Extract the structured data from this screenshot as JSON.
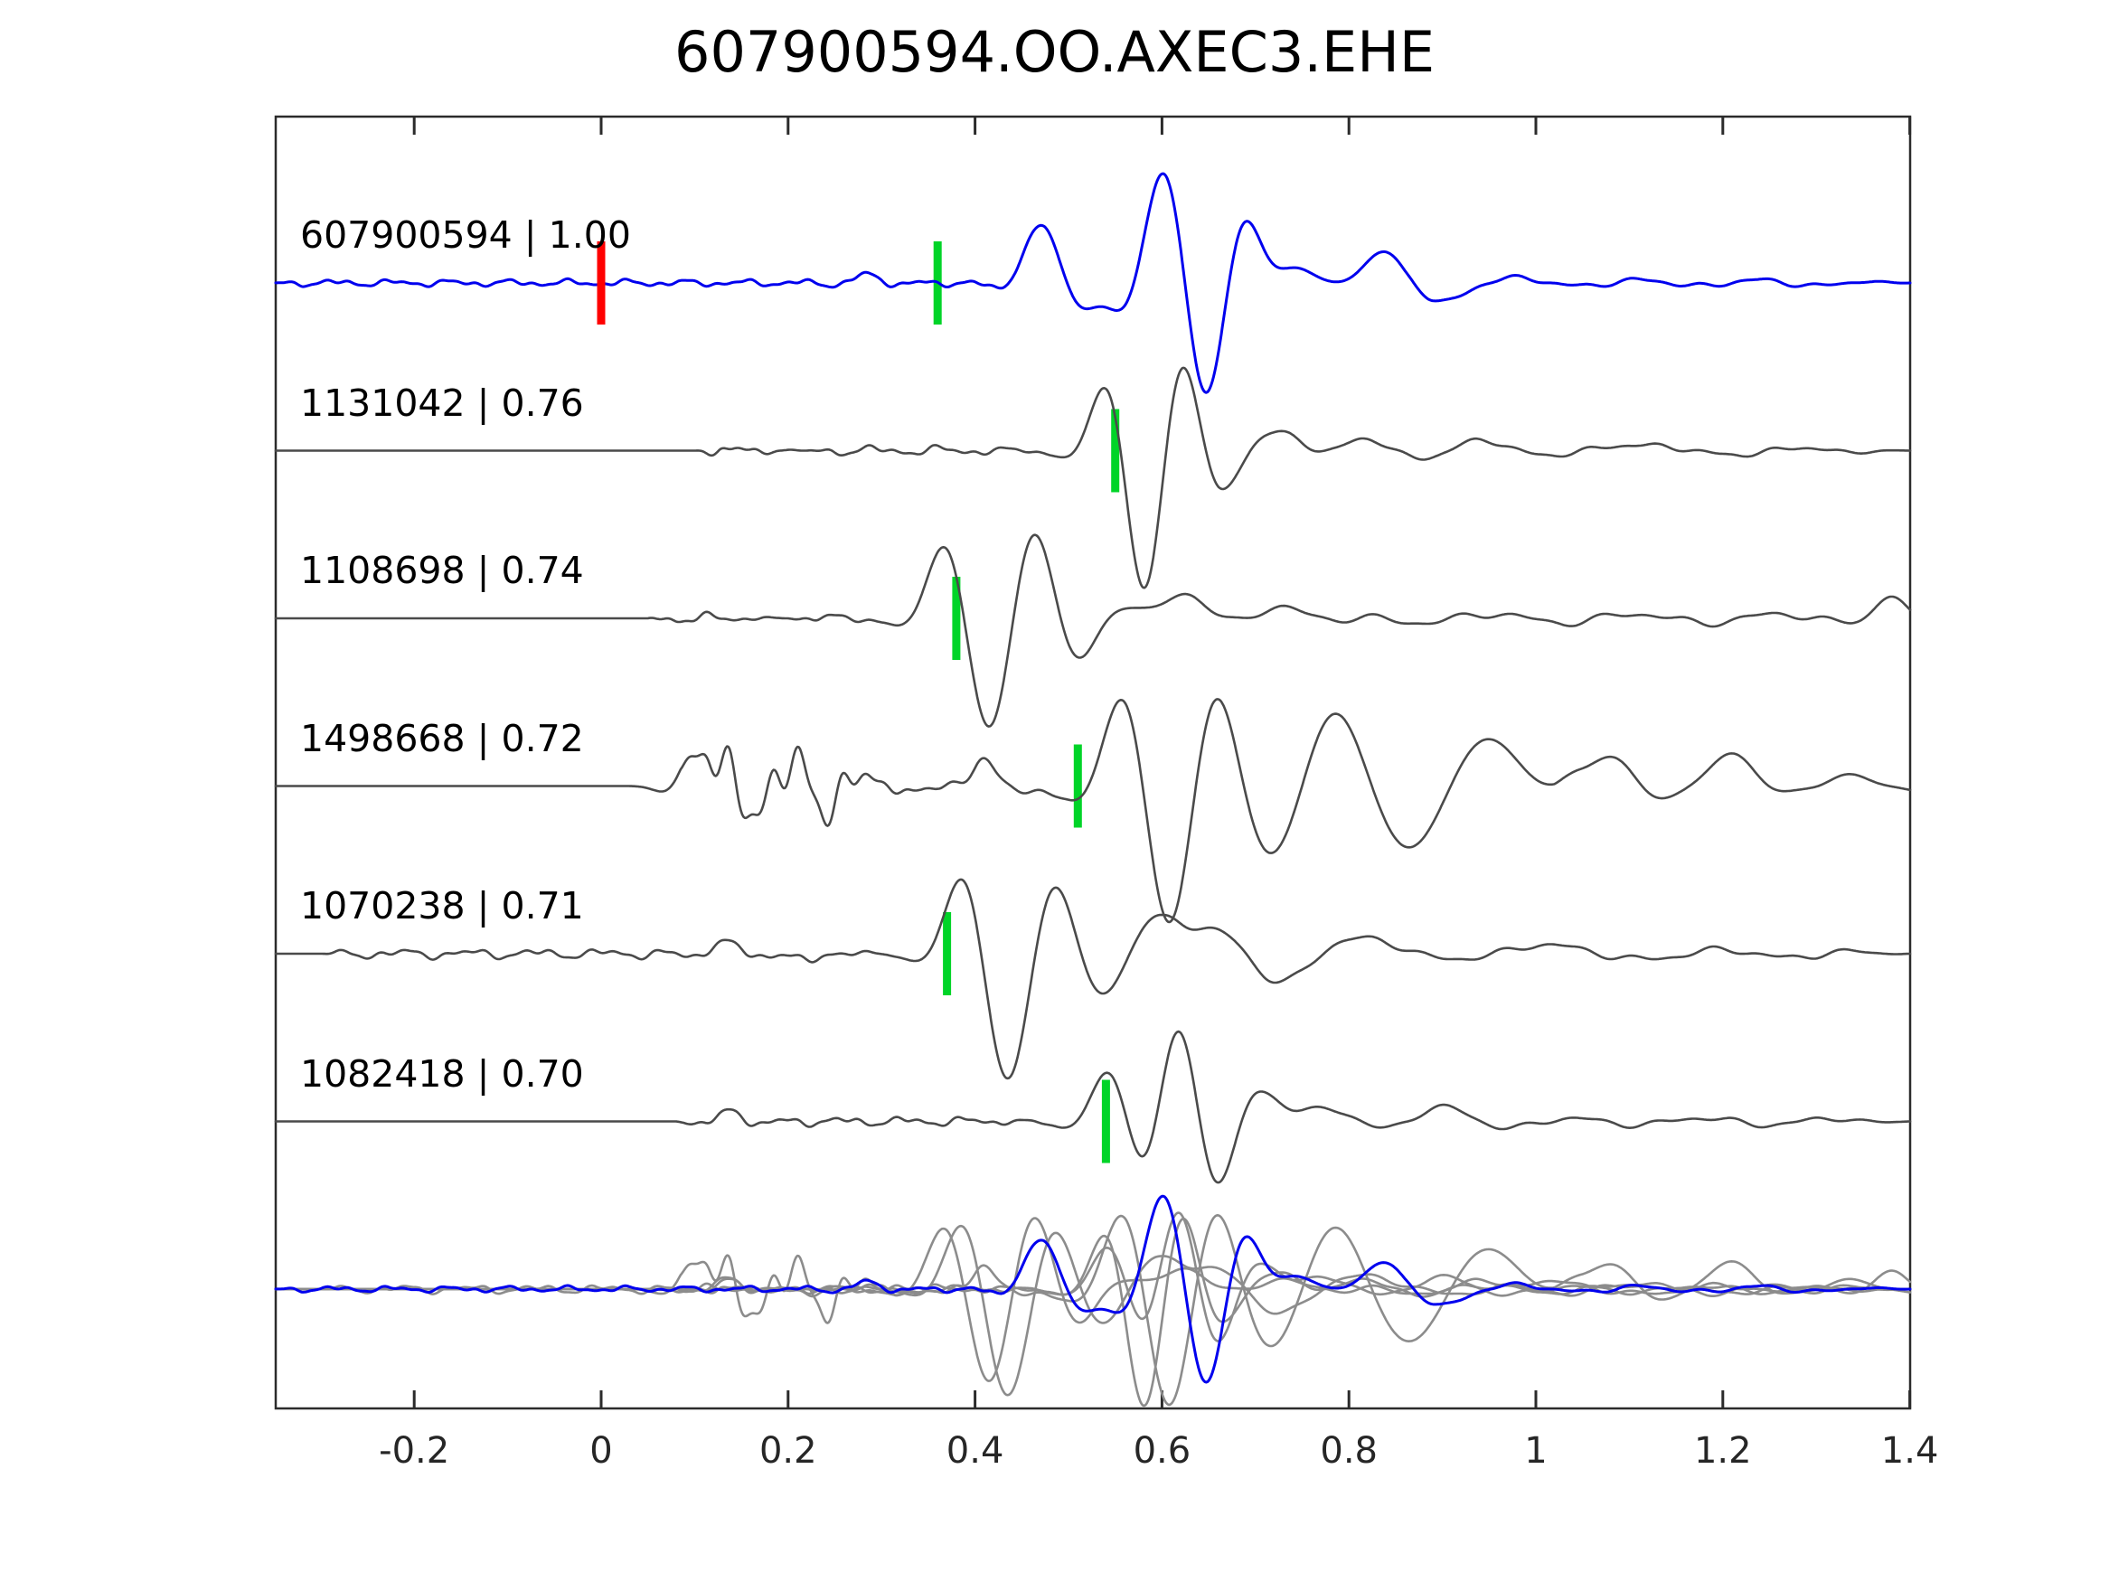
{
  "chart_data": {
    "type": "line",
    "title": "607900594.OO.AXEC3.EHE",
    "xlabel": "",
    "ylabel": "",
    "xlim": [
      -0.35,
      1.4
    ],
    "x_ticks": [
      -0.2,
      0,
      0.2,
      0.4,
      0.6,
      0.8,
      1,
      1.2,
      1.4
    ],
    "x_tick_labels": [
      "-0.2",
      "0",
      "0.2",
      "0.4",
      "0.6",
      "0.8",
      "1",
      "1.2",
      "1.4"
    ],
    "grid": false,
    "legend": "none",
    "colors": {
      "reference_trace": "#0000ee",
      "candidate_trace": "#4a4a4a",
      "overlay_candidate_trace": "#8c8c8c",
      "pick_marker": "#00d428",
      "zero_lag_marker": "#ff0000",
      "frame": "#2b2b2b",
      "tick_label": "#262626",
      "background": "#ffffff"
    },
    "events_format": "[time, amplitude_px, frequency, gaussian_width] gabor wavelets approximating the waveform",
    "bursts_format": "[t_from, t_to, amplitude_px, frequency, seed] band-limited noise packets",
    "rows": [
      {
        "id": "607900594",
        "correlation": 1.0,
        "label": "607900594 | 1.00",
        "role": "reference",
        "zero_lag_t": 0.0,
        "pick_t": 0.36,
        "bursts": [
          [
            -0.35,
            0.5,
            4.5,
            16,
            3
          ],
          [
            0.86,
            1.4,
            6,
            8,
            5
          ]
        ],
        "events": [
          [
            0.285,
            9,
            10,
            0.03
          ],
          [
            0.47,
            60,
            7,
            0.035
          ],
          [
            0.515,
            -22,
            9,
            0.035
          ],
          [
            0.6,
            100,
            8.5,
            0.05
          ],
          [
            0.648,
            -70,
            9,
            0.045
          ],
          [
            0.688,
            58,
            9,
            0.045
          ],
          [
            0.733,
            40,
            8,
            0.05
          ],
          [
            0.778,
            20,
            8,
            0.05
          ],
          [
            0.835,
            36,
            6.5,
            0.05
          ],
          [
            0.9,
            -14,
            6,
            0.06
          ]
        ]
      },
      {
        "id": "1131042",
        "correlation": 0.76,
        "label": "1131042 | 0.76",
        "role": "candidate",
        "pick_t": 0.55,
        "bursts": [
          [
            0.1,
            0.22,
            9,
            16,
            7
          ],
          [
            0.22,
            0.5,
            6.5,
            14,
            8
          ],
          [
            0.66,
            1.4,
            6,
            8,
            11
          ]
        ],
        "events": [
          [
            0.545,
            60,
            7.5,
            0.04
          ],
          [
            0.582,
            -138,
            7,
            0.042
          ],
          [
            0.618,
            80,
            8,
            0.045
          ],
          [
            0.662,
            -22,
            8,
            0.05
          ],
          [
            0.73,
            22,
            6,
            0.06
          ],
          [
            0.82,
            16,
            6,
            0.07
          ],
          [
            0.95,
            12,
            5.5,
            0.08
          ],
          [
            1.1,
            9,
            5,
            0.09
          ]
        ]
      },
      {
        "id": "1108698",
        "correlation": 0.74,
        "label": "1108698 | 0.74",
        "role": "candidate",
        "pick_t": 0.38,
        "bursts": [
          [
            0.05,
            0.2,
            8,
            15,
            13
          ],
          [
            0.2,
            0.34,
            6.5,
            14,
            14
          ],
          [
            0.5,
            1.4,
            9,
            6.5,
            15
          ]
        ],
        "events": [
          [
            0.37,
            66,
            7,
            0.042
          ],
          [
            0.415,
            -100,
            6.5,
            0.048
          ],
          [
            0.462,
            73,
            7,
            0.045
          ],
          [
            0.51,
            -28,
            7,
            0.05
          ],
          [
            0.555,
            20,
            8,
            0.045
          ],
          [
            0.62,
            30,
            5.5,
            0.065
          ],
          [
            0.72,
            20,
            5.5,
            0.07
          ],
          [
            1.38,
            24,
            7,
            0.03
          ]
        ]
      },
      {
        "id": "1498668",
        "correlation": 0.72,
        "label": "1498668 | 0.72",
        "role": "candidate",
        "pick_t": 0.51,
        "bursts": [
          [
            0.085,
            0.33,
            55,
            13,
            17
          ],
          [
            0.33,
            0.5,
            20,
            10,
            18
          ],
          [
            1.02,
            1.4,
            16,
            5,
            19
          ]
        ],
        "events": [
          [
            0.1,
            40,
            10,
            0.03
          ],
          [
            0.4,
            30,
            8,
            0.05
          ],
          [
            0.56,
            76,
            7,
            0.05
          ],
          [
            0.607,
            -122,
            6.5,
            0.05
          ],
          [
            0.658,
            66,
            7,
            0.05
          ],
          [
            0.72,
            -52,
            5.5,
            0.06
          ],
          [
            0.785,
            60,
            5,
            0.06
          ],
          [
            0.865,
            -48,
            4.8,
            0.07
          ],
          [
            0.955,
            50,
            4.5,
            0.08
          ],
          [
            1.07,
            40,
            4,
            0.09
          ],
          [
            1.2,
            26,
            4,
            0.09
          ],
          [
            1.33,
            20,
            5,
            0.07
          ]
        ]
      },
      {
        "id": "1070238",
        "correlation": 0.71,
        "label": "1070238 | 0.71",
        "role": "candidate",
        "pick_t": 0.37,
        "bursts": [
          [
            -0.3,
            0.33,
            6.5,
            14,
            23
          ],
          [
            0.6,
            1.4,
            8,
            7,
            29
          ]
        ],
        "events": [
          [
            0.13,
            13,
            10,
            0.035
          ],
          [
            0.22,
            -10,
            11,
            0.03
          ],
          [
            0.39,
            72,
            7,
            0.042
          ],
          [
            0.435,
            -118,
            6,
            0.05
          ],
          [
            0.482,
            56,
            7,
            0.05
          ],
          [
            0.535,
            -22,
            7,
            0.05
          ],
          [
            0.6,
            46,
            6,
            0.06
          ],
          [
            0.66,
            30,
            6,
            0.06
          ],
          [
            0.73,
            -20,
            6,
            0.06
          ],
          [
            0.83,
            18,
            5,
            0.08
          ],
          [
            1.0,
            13,
            5,
            0.09
          ]
        ]
      },
      {
        "id": "1082418",
        "correlation": 0.7,
        "label": "1082418 | 0.70",
        "role": "candidate",
        "pick_t": 0.54,
        "bursts": [
          [
            0.08,
            0.5,
            6,
            15,
            31
          ],
          [
            0.7,
            1.4,
            7,
            7,
            37
          ]
        ],
        "events": [
          [
            0.14,
            12,
            12,
            0.03
          ],
          [
            0.545,
            56,
            7,
            0.04
          ],
          [
            0.585,
            -32,
            8,
            0.04
          ],
          [
            0.618,
            96,
            7.5,
            0.048
          ],
          [
            0.655,
            -50,
            8,
            0.045
          ],
          [
            0.705,
            28,
            6,
            0.06
          ],
          [
            0.78,
            20,
            5,
            0.07
          ],
          [
            0.9,
            13,
            5,
            0.08
          ]
        ]
      }
    ],
    "overlay_row": {
      "description": "all candidate traces overplotted in light gray with the blue reference on top",
      "member_rows": [
        1,
        2,
        3,
        4,
        5
      ],
      "reference_row": 0,
      "amplitude_scale": 0.85,
      "time_shift": 0
    }
  }
}
